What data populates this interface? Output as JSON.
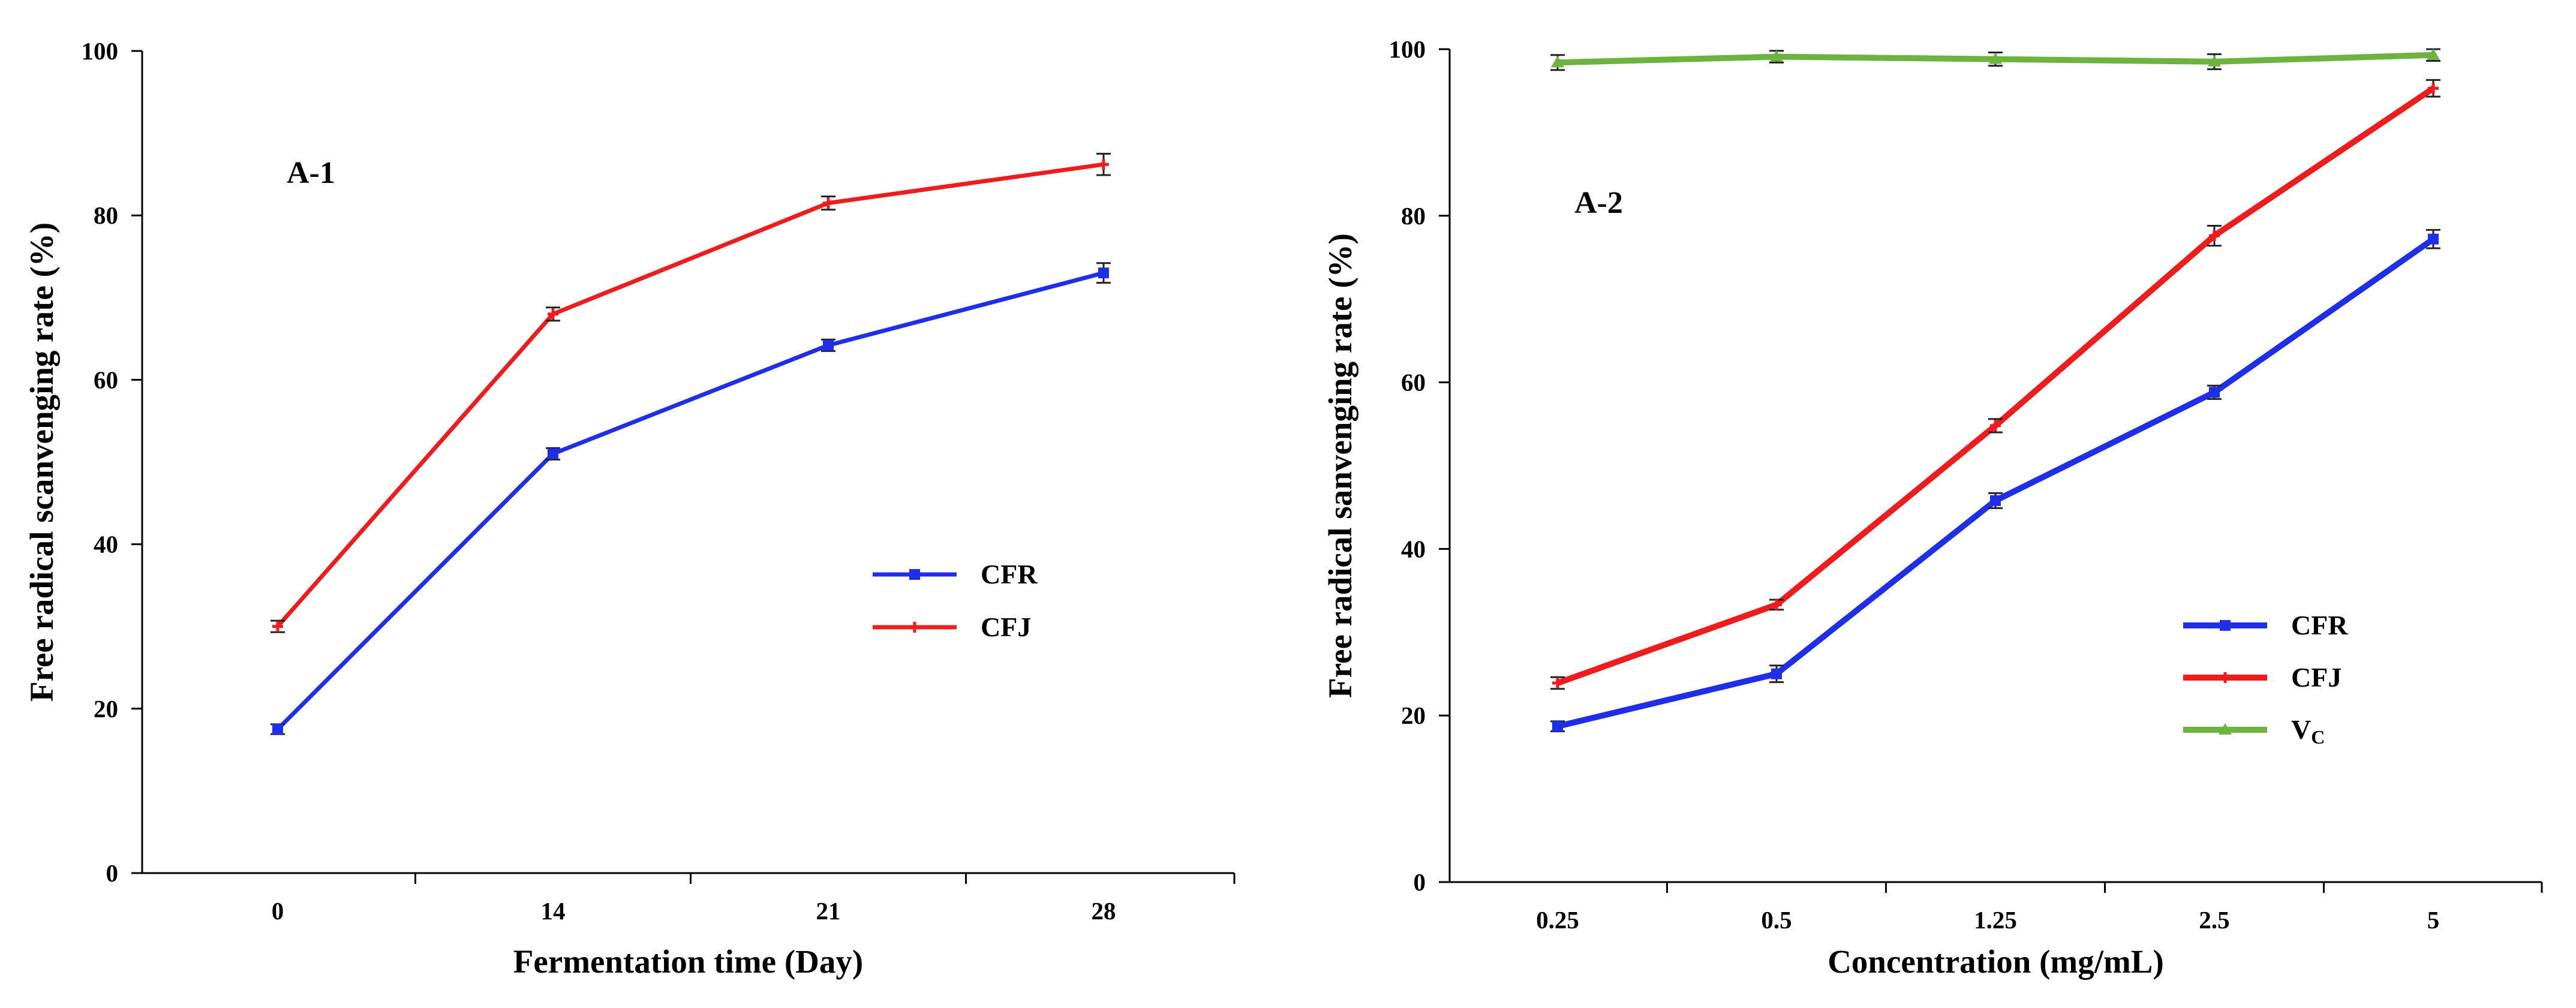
{
  "colors": {
    "CFR": "#1f2fe8",
    "CFJ": "#ee1c1c",
    "VC": "#6db33f",
    "axis": "#000000"
  },
  "chart_data": [
    {
      "type": "line",
      "panel_label": "A-1",
      "categories": [
        "0",
        "14",
        "21",
        "28"
      ],
      "xlabel": "Fermentation time (Day)",
      "ylabel": "Free radical scanvenging rate (%)",
      "ylim": [
        0,
        100
      ],
      "yticks": [
        "0",
        "20",
        "40",
        "60",
        "80",
        "100"
      ],
      "legend_position": "right-middle",
      "series": [
        {
          "name": "CFR",
          "color_key": "CFR",
          "marker": "square",
          "values": [
            17.5,
            51,
            64.2,
            73
          ],
          "errors": [
            0.6,
            0.7,
            0.7,
            1.2
          ]
        },
        {
          "name": "CFJ",
          "color_key": "CFJ",
          "marker": "plus",
          "values": [
            30,
            68,
            81.5,
            86.2
          ],
          "errors": [
            0.7,
            0.8,
            0.8,
            1.3
          ]
        }
      ]
    },
    {
      "type": "line",
      "panel_label": "A-2",
      "categories": [
        "0.25",
        "0.5",
        "1.25",
        "2.5",
        "5"
      ],
      "xlabel": "Concentration (mg/mL)",
      "ylabel": "Free radical sanvenging rate (%)",
      "ylim": [
        0,
        100
      ],
      "yticks": [
        "0",
        "20",
        "40",
        "60",
        "80",
        "100"
      ],
      "legend_position": "bottom-right",
      "series": [
        {
          "name": "CFR",
          "color_key": "CFR",
          "marker": "square",
          "values": [
            18.7,
            25,
            45.8,
            58.8,
            77.2
          ],
          "errors": [
            0.6,
            1.0,
            0.9,
            0.8,
            1.1
          ]
        },
        {
          "name": "CFJ",
          "color_key": "CFJ",
          "marker": "plus",
          "values": [
            23.9,
            33.3,
            54.8,
            77.6,
            95.3
          ],
          "errors": [
            0.7,
            0.6,
            0.8,
            1.2,
            1.0
          ]
        },
        {
          "name": "V",
          "subscript": "C",
          "color_key": "VC",
          "marker": "triangle",
          "values": [
            98.4,
            99.1,
            98.8,
            98.5,
            99.3
          ],
          "errors": [
            0.9,
            0.7,
            0.8,
            0.9,
            0.7
          ]
        }
      ]
    }
  ]
}
